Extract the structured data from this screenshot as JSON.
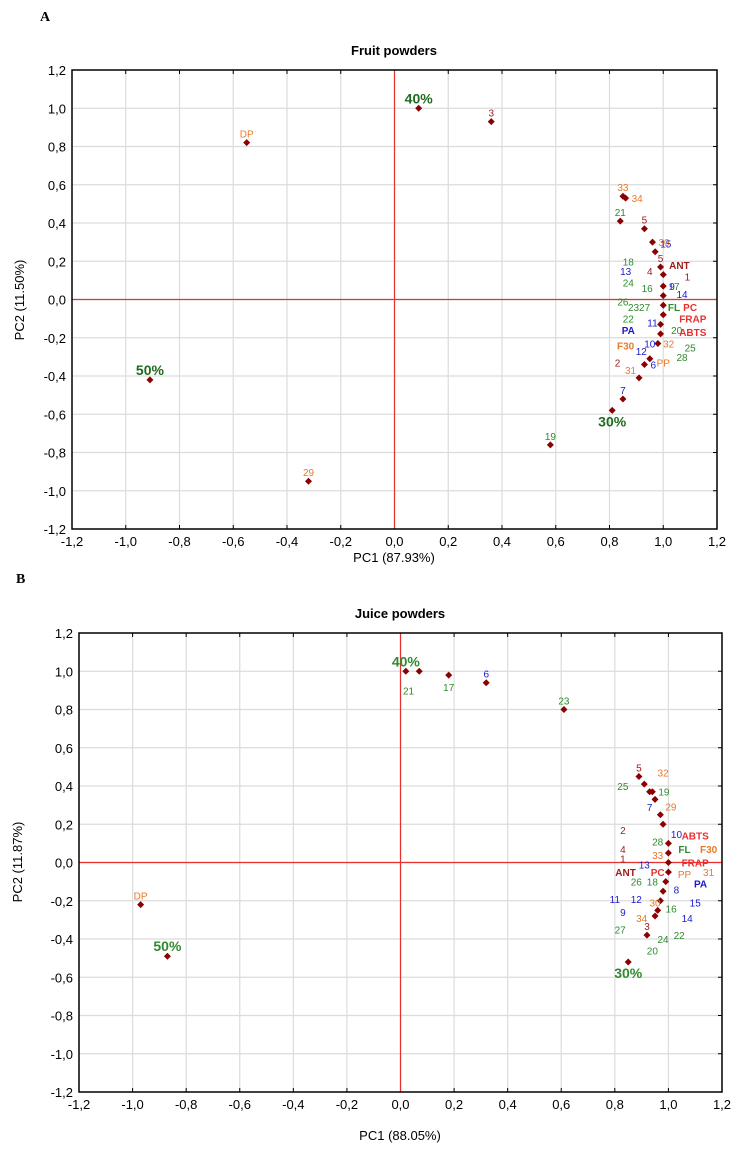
{
  "panels": [
    "A",
    "B"
  ],
  "chart_data": [
    {
      "type": "scatter",
      "panel": "A",
      "title": "Fruit powders",
      "xlabel": "PC1 (87.93%)",
      "ylabel": "PC2 (11.50%)",
      "xlim": [
        -1.2,
        1.2
      ],
      "ylim": [
        -1.2,
        1.2
      ],
      "xticks": [
        "-1,2",
        "-1,0",
        "-0,8",
        "-0,6",
        "-0,4",
        "-0,2",
        "0,0",
        "0,2",
        "0,4",
        "0,6",
        "0,8",
        "1,0",
        "1,2"
      ],
      "yticks": [
        "1,2",
        "1,0",
        "0,8",
        "0,6",
        "0,4",
        "0,2",
        "0,0",
        "-0,2",
        "-0,4",
        "-0,6",
        "-0,8",
        "-1,0",
        "-1,2"
      ],
      "grid": true,
      "reference_lines": {
        "x": 0,
        "y": 0,
        "color": "#e8312f"
      },
      "marker_color": "#8b0000",
      "colors": {
        "darkgreen": "#1f6b1f",
        "green": "#2e8b2e",
        "blue": "#1a1acd",
        "orange": "#e8792b",
        "red": "#e8312f",
        "darkred": "#9b1b1b"
      },
      "points": [
        {
          "x": -0.55,
          "y": 0.82,
          "label": "DP",
          "color": "orange"
        },
        {
          "x": 0.09,
          "y": 1.0,
          "label": "40%",
          "color": "darkgreen",
          "style": "big"
        },
        {
          "x": 0.36,
          "y": 0.93,
          "label": "3",
          "color": "darkred"
        },
        {
          "x": -0.91,
          "y": -0.42,
          "label": "50%",
          "color": "darkgreen",
          "style": "big"
        },
        {
          "x": -0.32,
          "y": -0.95,
          "label": "29",
          "color": "orange"
        },
        {
          "x": 0.58,
          "y": -0.76,
          "label": "19",
          "color": "green"
        },
        {
          "x": 0.81,
          "y": -0.58,
          "label": "30%",
          "color": "darkgreen",
          "style": "big",
          "pos": "below"
        },
        {
          "x": 0.85,
          "y": -0.52,
          "label": "7",
          "color": "blue"
        },
        {
          "x": 0.91,
          "y": -0.41,
          "label": "31",
          "color": "orange",
          "pos": "upleft"
        },
        {
          "x": 0.93,
          "y": -0.34,
          "label": "6",
          "color": "blue",
          "pos": "right"
        },
        {
          "x": 0.95,
          "y": -0.31,
          "label": "12",
          "color": "blue",
          "pos": "upleft"
        },
        {
          "x": 0.85,
          "y": 0.54,
          "label": "33",
          "color": "orange"
        },
        {
          "x": 0.86,
          "y": 0.53,
          "label": "34",
          "color": "orange",
          "pos": "right"
        },
        {
          "x": 0.84,
          "y": 0.41,
          "label": "21",
          "color": "green"
        },
        {
          "x": 0.93,
          "y": 0.37,
          "label": "5",
          "color": "darkred"
        },
        {
          "x": 0.96,
          "y": 0.3,
          "label": "30",
          "color": "orange",
          "pos": "right"
        },
        {
          "x": 0.97,
          "y": 0.25,
          "label": "15",
          "color": "blue",
          "pos": "upright"
        },
        {
          "x": 0.99,
          "y": 0.17,
          "label": "5",
          "color": "darkred"
        },
        {
          "x": 1.0,
          "y": 0.13,
          "label": "",
          "color": "darkred"
        },
        {
          "x": 1.0,
          "y": 0.07,
          "label": "9",
          "color": "blue",
          "pos": "right"
        },
        {
          "x": 1.0,
          "y": 0.02,
          "label": "",
          "color": "darkred"
        },
        {
          "x": 1.0,
          "y": -0.03,
          "label": "",
          "color": "darkred"
        },
        {
          "x": 1.0,
          "y": -0.08,
          "label": "",
          "color": "darkred"
        },
        {
          "x": 0.99,
          "y": -0.13,
          "label": "",
          "color": "darkred"
        },
        {
          "x": 0.99,
          "y": -0.18,
          "label": "",
          "color": "darkred"
        },
        {
          "x": 0.98,
          "y": -0.23,
          "label": "",
          "color": "darkred"
        }
      ],
      "labels": [
        {
          "x": 0.87,
          "y": 0.2,
          "text": "18",
          "color": "green"
        },
        {
          "x": 0.86,
          "y": 0.15,
          "text": "13",
          "color": "blue"
        },
        {
          "x": 0.95,
          "y": 0.15,
          "text": "4",
          "color": "darkred"
        },
        {
          "x": 1.06,
          "y": 0.18,
          "text": "ANT",
          "color": "darkred",
          "style": "bold"
        },
        {
          "x": 1.09,
          "y": 0.12,
          "text": "1",
          "color": "darkred"
        },
        {
          "x": 0.87,
          "y": 0.09,
          "text": "24",
          "color": "green"
        },
        {
          "x": 0.94,
          "y": 0.06,
          "text": "16",
          "color": "green"
        },
        {
          "x": 1.04,
          "y": 0.07,
          "text": "17",
          "color": "green"
        },
        {
          "x": 1.07,
          "y": 0.03,
          "text": "14",
          "color": "blue"
        },
        {
          "x": 0.85,
          "y": -0.01,
          "text": "26",
          "color": "green"
        },
        {
          "x": 0.91,
          "y": -0.04,
          "text": "2327",
          "color": "green"
        },
        {
          "x": 1.04,
          "y": -0.04,
          "text": "FL",
          "color": "green",
          "style": "bold"
        },
        {
          "x": 1.1,
          "y": -0.04,
          "text": "PC",
          "color": "red",
          "style": "bold"
        },
        {
          "x": 0.87,
          "y": -0.1,
          "text": "22",
          "color": "green"
        },
        {
          "x": 0.96,
          "y": -0.12,
          "text": "11",
          "color": "blue"
        },
        {
          "x": 1.11,
          "y": -0.1,
          "text": "FRAP",
          "color": "red",
          "style": "bold"
        },
        {
          "x": 0.87,
          "y": -0.16,
          "text": "PA",
          "color": "blue",
          "style": "bold"
        },
        {
          "x": 1.05,
          "y": -0.16,
          "text": "20",
          "color": "green"
        },
        {
          "x": 1.11,
          "y": -0.17,
          "text": "ABTS",
          "color": "red",
          "style": "bold"
        },
        {
          "x": 0.86,
          "y": -0.24,
          "text": "F30",
          "color": "orange",
          "style": "bold"
        },
        {
          "x": 0.95,
          "y": -0.23,
          "text": "10",
          "color": "blue"
        },
        {
          "x": 1.02,
          "y": -0.23,
          "text": "32",
          "color": "orange"
        },
        {
          "x": 1.1,
          "y": -0.25,
          "text": "25",
          "color": "green"
        },
        {
          "x": 0.83,
          "y": -0.33,
          "text": "2",
          "color": "darkred"
        },
        {
          "x": 1.0,
          "y": -0.33,
          "text": "PP",
          "color": "orange"
        },
        {
          "x": 1.07,
          "y": -0.3,
          "text": "28",
          "color": "green"
        }
      ]
    },
    {
      "type": "scatter",
      "panel": "B",
      "title": "Juice powders",
      "xlabel": "PC1 (88.05%)",
      "ylabel": "PC2 (11.87%)",
      "xlim": [
        -1.2,
        1.2
      ],
      "ylim": [
        -1.2,
        1.2
      ],
      "xticks": [
        "-1,2",
        "-1,0",
        "-0,8",
        "-0,6",
        "-0,4",
        "-0,2",
        "0,0",
        "0,2",
        "0,4",
        "0,6",
        "0,8",
        "1,0",
        "1,2"
      ],
      "yticks": [
        "1,2",
        "1,0",
        "0,8",
        "0,6",
        "0,4",
        "0,2",
        "0,0",
        "-0,2",
        "-0,4",
        "-0,6",
        "-0,8",
        "-1,0",
        "-1,2"
      ],
      "grid": true,
      "reference_lines": {
        "x": 0,
        "y": 0,
        "color": "#e8312f"
      },
      "marker_color": "#8b0000",
      "colors": {
        "darkgreen": "#1f6b1f",
        "green": "#2e8b2e",
        "blue": "#1a1acd",
        "orange": "#e8792b",
        "red": "#e8312f",
        "darkred": "#9b1b1b"
      },
      "points": [
        {
          "x": -0.97,
          "y": -0.22,
          "label": "DP",
          "color": "orange"
        },
        {
          "x": -0.87,
          "y": -0.49,
          "label": "50%",
          "color": "green",
          "style": "big"
        },
        {
          "x": 0.02,
          "y": 1.0,
          "label": "40%",
          "color": "green",
          "style": "big"
        },
        {
          "x": 0.07,
          "y": 1.0,
          "label": "",
          "color": "green"
        },
        {
          "x": 0.18,
          "y": 0.98,
          "label": "17",
          "color": "green",
          "pos": "below"
        },
        {
          "x": 0.32,
          "y": 0.94,
          "label": "6",
          "color": "blue"
        },
        {
          "x": 0.61,
          "y": 0.8,
          "label": "23",
          "color": "green"
        },
        {
          "x": 0.89,
          "y": 0.45,
          "label": "5",
          "color": "darkred"
        },
        {
          "x": 0.91,
          "y": 0.41,
          "label": "",
          "color": "darkred"
        },
        {
          "x": 0.93,
          "y": 0.37,
          "label": "",
          "color": "darkred"
        },
        {
          "x": 0.94,
          "y": 0.37,
          "label": "19",
          "color": "green",
          "pos": "right"
        },
        {
          "x": 0.95,
          "y": 0.33,
          "label": "",
          "color": "darkred"
        },
        {
          "x": 0.97,
          "y": 0.25,
          "label": "29",
          "color": "orange",
          "pos": "upright"
        },
        {
          "x": 0.98,
          "y": 0.2,
          "label": "",
          "color": "darkred"
        },
        {
          "x": 1.0,
          "y": 0.1,
          "label": "",
          "color": "darkred"
        },
        {
          "x": 1.0,
          "y": 0.05,
          "label": "",
          "color": "darkred"
        },
        {
          "x": 1.0,
          "y": 0.0,
          "label": "",
          "color": "darkred"
        },
        {
          "x": 1.0,
          "y": -0.05,
          "label": "",
          "color": "darkred"
        },
        {
          "x": 0.99,
          "y": -0.1,
          "label": "",
          "color": "darkred"
        },
        {
          "x": 0.98,
          "y": -0.15,
          "label": "",
          "color": "darkred"
        },
        {
          "x": 0.97,
          "y": -0.2,
          "label": "",
          "color": "darkred"
        },
        {
          "x": 0.96,
          "y": -0.25,
          "label": "",
          "color": "darkred"
        },
        {
          "x": 0.95,
          "y": -0.28,
          "label": "",
          "color": "darkred"
        },
        {
          "x": 0.92,
          "y": -0.38,
          "label": "3",
          "color": "darkred"
        },
        {
          "x": 0.85,
          "y": -0.52,
          "label": "30%",
          "color": "green",
          "style": "big",
          "pos": "below"
        }
      ],
      "labels": [
        {
          "x": 0.03,
          "y": 0.9,
          "text": "21",
          "color": "green"
        },
        {
          "x": 0.98,
          "y": 0.47,
          "text": "32",
          "color": "orange"
        },
        {
          "x": 0.83,
          "y": 0.4,
          "text": "25",
          "color": "green"
        },
        {
          "x": 0.93,
          "y": 0.29,
          "text": "7",
          "color": "blue"
        },
        {
          "x": 0.83,
          "y": 0.17,
          "text": "2",
          "color": "darkred"
        },
        {
          "x": 1.03,
          "y": 0.15,
          "text": "10",
          "color": "blue"
        },
        {
          "x": 1.1,
          "y": 0.14,
          "text": "ABTS",
          "color": "red",
          "style": "bold"
        },
        {
          "x": 0.96,
          "y": 0.11,
          "text": "28",
          "color": "green"
        },
        {
          "x": 0.83,
          "y": 0.07,
          "text": "4",
          "color": "darkred"
        },
        {
          "x": 1.06,
          "y": 0.07,
          "text": "FL",
          "color": "green",
          "style": "bold"
        },
        {
          "x": 1.15,
          "y": 0.07,
          "text": "F30",
          "color": "orange",
          "style": "bold"
        },
        {
          "x": 0.96,
          "y": 0.04,
          "text": "33",
          "color": "orange"
        },
        {
          "x": 0.83,
          "y": 0.02,
          "text": "1",
          "color": "darkred"
        },
        {
          "x": 1.1,
          "y": 0.0,
          "text": "FRAP",
          "color": "red",
          "style": "bold"
        },
        {
          "x": 0.91,
          "y": -0.01,
          "text": "13",
          "color": "blue"
        },
        {
          "x": 0.84,
          "y": -0.05,
          "text": "ANT",
          "color": "darkred",
          "style": "bold"
        },
        {
          "x": 0.96,
          "y": -0.05,
          "text": "PC",
          "color": "red",
          "style": "bold"
        },
        {
          "x": 1.06,
          "y": -0.06,
          "text": "PP",
          "color": "orange"
        },
        {
          "x": 1.15,
          "y": -0.05,
          "text": "31",
          "color": "orange"
        },
        {
          "x": 0.88,
          "y": -0.1,
          "text": "26",
          "color": "green"
        },
        {
          "x": 0.94,
          "y": -0.1,
          "text": "18",
          "color": "green"
        },
        {
          "x": 1.03,
          "y": -0.14,
          "text": "8",
          "color": "blue"
        },
        {
          "x": 1.12,
          "y": -0.11,
          "text": "PA",
          "color": "blue",
          "style": "bold"
        },
        {
          "x": 0.8,
          "y": -0.19,
          "text": "11",
          "color": "blue"
        },
        {
          "x": 0.88,
          "y": -0.19,
          "text": "12",
          "color": "blue"
        },
        {
          "x": 0.95,
          "y": -0.21,
          "text": "30",
          "color": "orange"
        },
        {
          "x": 1.01,
          "y": -0.24,
          "text": "16",
          "color": "green"
        },
        {
          "x": 1.1,
          "y": -0.21,
          "text": "15",
          "color": "blue"
        },
        {
          "x": 0.83,
          "y": -0.26,
          "text": "9",
          "color": "blue"
        },
        {
          "x": 0.9,
          "y": -0.29,
          "text": "34",
          "color": "orange"
        },
        {
          "x": 1.07,
          "y": -0.29,
          "text": "14",
          "color": "blue"
        },
        {
          "x": 0.82,
          "y": -0.35,
          "text": "27",
          "color": "green"
        },
        {
          "x": 0.98,
          "y": -0.4,
          "text": "24",
          "color": "green"
        },
        {
          "x": 1.04,
          "y": -0.38,
          "text": "22",
          "color": "green"
        },
        {
          "x": 0.94,
          "y": -0.46,
          "text": "20",
          "color": "green"
        }
      ]
    }
  ]
}
